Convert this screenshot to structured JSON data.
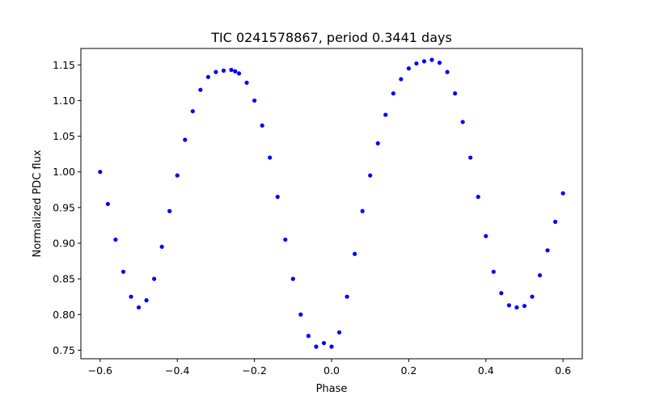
{
  "chart_data": {
    "type": "scatter",
    "title": "TIC 0241578867, period 0.3441 days",
    "xlabel": "Phase",
    "ylabel": "Normalized PDC flux",
    "xlim": [
      -0.65,
      0.65
    ],
    "ylim": [
      0.738,
      1.173
    ],
    "xticks": [
      -0.6,
      -0.4,
      -0.2,
      0.0,
      0.2,
      0.4,
      0.6
    ],
    "xtick_labels": [
      "−0.6",
      "−0.4",
      "−0.2",
      "0.0",
      "0.2",
      "0.4",
      "0.6"
    ],
    "yticks": [
      0.75,
      0.8,
      0.85,
      0.9,
      0.95,
      1.0,
      1.05,
      1.1,
      1.15
    ],
    "ytick_labels": [
      "0.75",
      "0.80",
      "0.85",
      "0.90",
      "0.95",
      "1.00",
      "1.05",
      "1.10",
      "1.15"
    ],
    "grid": false,
    "marker_color": "#0000ff",
    "series": [
      {
        "name": "TIC 0241578867",
        "x": [
          -0.6,
          -0.58,
          -0.56,
          -0.54,
          -0.52,
          -0.5,
          -0.48,
          -0.46,
          -0.44,
          -0.42,
          -0.4,
          -0.38,
          -0.36,
          -0.34,
          -0.32,
          -0.3,
          -0.28,
          -0.26,
          -0.25,
          -0.24,
          -0.22,
          -0.2,
          -0.18,
          -0.16,
          -0.14,
          -0.12,
          -0.1,
          -0.08,
          -0.06,
          -0.04,
          -0.02,
          0.0,
          0.02,
          0.04,
          0.06,
          0.08,
          0.1,
          0.12,
          0.14,
          0.16,
          0.18,
          0.2,
          0.22,
          0.24,
          0.26,
          0.28,
          0.3,
          0.32,
          0.34,
          0.36,
          0.38,
          0.4,
          0.42,
          0.44,
          0.46,
          0.48,
          0.5,
          0.52,
          0.54,
          0.56,
          0.58,
          0.6
        ],
        "y": [
          1.0,
          0.955,
          0.905,
          0.86,
          0.825,
          0.81,
          0.82,
          0.85,
          0.895,
          0.945,
          0.995,
          1.045,
          1.085,
          1.115,
          1.133,
          1.14,
          1.142,
          1.143,
          1.141,
          1.138,
          1.125,
          1.1,
          1.065,
          1.02,
          0.965,
          0.905,
          0.85,
          0.8,
          0.77,
          0.755,
          0.76,
          0.755,
          0.775,
          0.825,
          0.885,
          0.945,
          0.995,
          1.04,
          1.08,
          1.11,
          1.13,
          1.145,
          1.152,
          1.155,
          1.157,
          1.153,
          1.14,
          1.11,
          1.07,
          1.02,
          0.965,
          0.91,
          0.86,
          0.83,
          0.813,
          0.81,
          0.812,
          0.825,
          0.855,
          0.89,
          0.93,
          0.97
        ]
      }
    ]
  }
}
